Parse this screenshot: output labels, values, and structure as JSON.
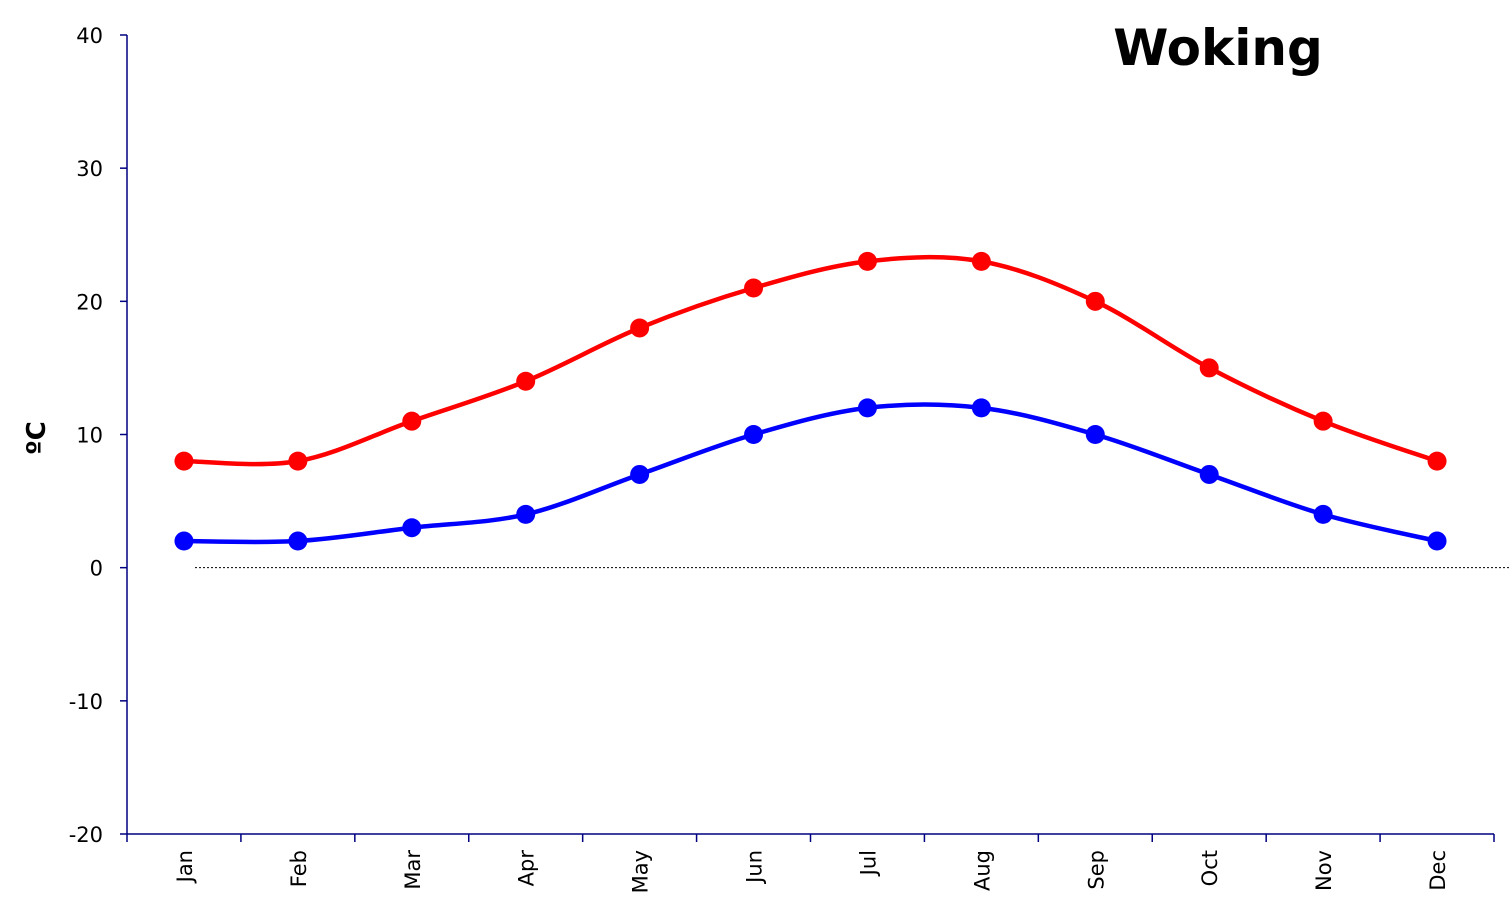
{
  "chart_data": {
    "type": "line",
    "title": "Woking",
    "ylabel": "ºC",
    "xlabel": "",
    "ylim": [
      -20,
      40
    ],
    "yticks": [
      -20,
      -10,
      0,
      10,
      20,
      30,
      40
    ],
    "categories": [
      "Jan",
      "Feb",
      "Mar",
      "Apr",
      "May",
      "Jun",
      "Jul",
      "Aug",
      "Sep",
      "Oct",
      "Nov",
      "Dec"
    ],
    "series": [
      {
        "color": "#ff0000",
        "values": [
          8,
          8,
          11,
          14,
          18,
          21,
          23,
          23,
          20,
          15,
          11,
          8
        ]
      },
      {
        "color": "#0000ff",
        "values": [
          2,
          2,
          3,
          4,
          7,
          10,
          12,
          12,
          10,
          7,
          4,
          2
        ]
      }
    ],
    "zero_line": "dotted",
    "grid": false,
    "legend": "none"
  }
}
